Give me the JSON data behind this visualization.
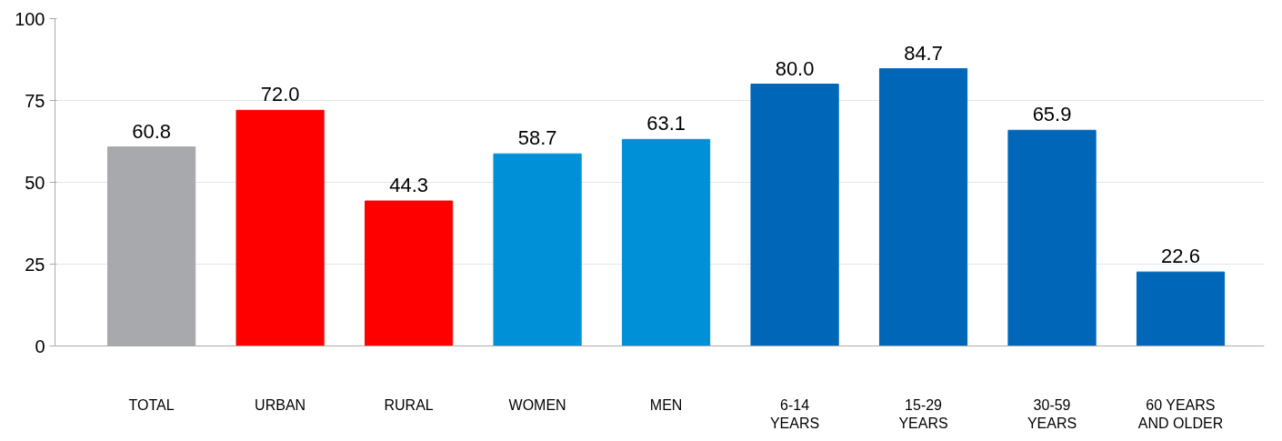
{
  "chart_data": {
    "type": "bar",
    "categories": [
      "TOTAL",
      "URBAN",
      "RURAL",
      "WOMEN",
      "MEN",
      "6-14\nYEARS",
      "15-29\nYEARS",
      "30-59\nYEARS",
      "60 YEARS\nAND OLDER"
    ],
    "values": [
      60.8,
      72.0,
      44.3,
      58.7,
      63.1,
      80.0,
      84.7,
      65.9,
      22.6
    ],
    "colors": [
      "#a7a9ac",
      "#ff0000",
      "#ff0000",
      "#0090d8",
      "#0090d8",
      "#0066b8",
      "#0066b8",
      "#0066b8",
      "#0066b8"
    ],
    "value_labels": [
      "60.8",
      "72.0",
      "44.3",
      "58.7",
      "63.1",
      "80.0",
      "84.7",
      "65.9",
      "22.6"
    ],
    "ylim": [
      0,
      100
    ],
    "yticks": [
      0,
      25,
      50,
      75,
      100
    ],
    "grid": "y"
  }
}
